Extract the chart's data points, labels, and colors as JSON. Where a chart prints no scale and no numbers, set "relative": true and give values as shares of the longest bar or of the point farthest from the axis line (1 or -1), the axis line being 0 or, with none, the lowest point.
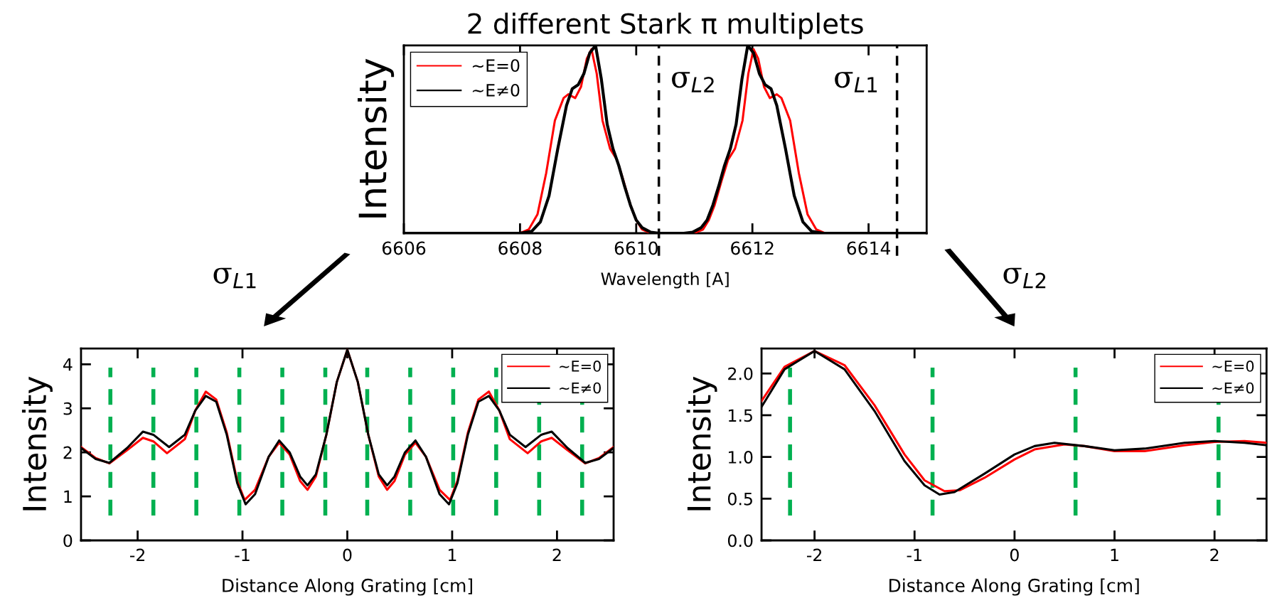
{
  "chart_data": [
    {
      "type": "line",
      "title": "2 different Stark π multiplets",
      "xlabel": "Wavelength [A]",
      "ylabel": "Intensity",
      "relative": true,
      "xlim": [
        6606,
        6615
      ],
      "xticks": [
        6606,
        6608,
        6610,
        6612,
        6614
      ],
      "grid": false,
      "legend": "top left",
      "marker": "none",
      "line_style": "solid",
      "series": [
        {
          "name": "~E=0",
          "color": "#ff0000",
          "x": [
            6606,
            6608.0,
            6608.15,
            6608.3,
            6608.45,
            6608.6,
            6608.75,
            6608.83,
            6608.95,
            6609.05,
            6609.15,
            6609.23,
            6609.32,
            6609.42,
            6609.55,
            6609.67,
            6609.78,
            6609.9,
            6610.0,
            6610.1,
            6610.25,
            6610.99,
            6611.15,
            6611.25,
            6611.35,
            6611.47,
            6611.58,
            6611.7,
            6611.83,
            6611.93,
            6612.02,
            6612.1,
            6612.2,
            6612.3,
            6612.42,
            6612.5,
            6612.65,
            6612.8,
            6612.95,
            6613.1,
            6613.25,
            6615
          ],
          "values": [
            0,
            0,
            0.02,
            0.1,
            0.32,
            0.6,
            0.72,
            0.74,
            0.72,
            0.78,
            0.93,
            0.98,
            0.85,
            0.6,
            0.45,
            0.39,
            0.28,
            0.15,
            0.07,
            0.02,
            0,
            0,
            0.02,
            0.07,
            0.15,
            0.28,
            0.39,
            0.45,
            0.6,
            0.85,
            0.98,
            0.93,
            0.78,
            0.72,
            0.74,
            0.72,
            0.6,
            0.32,
            0.1,
            0.02,
            0,
            0
          ]
        },
        {
          "name": "~E≠0",
          "color": "#000000",
          "x": [
            6606,
            6608.0,
            6608.2,
            6608.35,
            6608.5,
            6608.65,
            6608.8,
            6608.9,
            6609.0,
            6609.1,
            6609.2,
            6609.3,
            6609.4,
            6609.5,
            6609.6,
            6609.7,
            6609.8,
            6609.9,
            6610.0,
            6610.1,
            6610.25,
            6610.4,
            6610.82,
            6610.97,
            6611.12,
            6611.22,
            6611.32,
            6611.42,
            6611.52,
            6611.62,
            6611.72,
            6611.82,
            6611.92,
            6612.02,
            6612.12,
            6612.22,
            6612.32,
            6612.42,
            6612.57,
            6612.72,
            6612.87,
            6613.02,
            6613.22,
            6615
          ],
          "values": [
            0,
            0,
            0.01,
            0.06,
            0.2,
            0.45,
            0.68,
            0.77,
            0.79,
            0.85,
            0.96,
            1.0,
            0.82,
            0.58,
            0.45,
            0.36,
            0.25,
            0.15,
            0.07,
            0.03,
            0.005,
            0,
            0,
            0.005,
            0.03,
            0.07,
            0.15,
            0.25,
            0.36,
            0.45,
            0.58,
            0.82,
            1.0,
            0.96,
            0.85,
            0.79,
            0.77,
            0.68,
            0.45,
            0.2,
            0.06,
            0.01,
            0,
            0
          ]
        }
      ],
      "ref_lines": [
        {
          "axis": "x",
          "value": 6610.39,
          "label": "σ$_{L2}$",
          "color": "#000000",
          "line_style": "dashed"
        },
        {
          "axis": "x",
          "value": 6614.49,
          "label": "σ$_{L1}$",
          "color": "#000000",
          "line_style": "dashed"
        }
      ],
      "annotations": [
        "σ$_{L1}$",
        "σ$_{L2}$"
      ]
    },
    {
      "type": "line",
      "xlabel": "Distance Along Grating [cm]",
      "ylabel": "Intensity",
      "xlim": [
        -2.54,
        2.54
      ],
      "xticks": [
        -2,
        -1,
        0,
        1,
        2
      ],
      "ylim": [
        0,
        4.36
      ],
      "yticks": [
        0,
        1,
        2,
        3,
        4
      ],
      "grid": false,
      "legend": "top right",
      "marker": "none",
      "line_style": "solid",
      "series": [
        {
          "name": "~E=0",
          "color": "#ff0000",
          "x": [
            -2.54,
            -2.4,
            -2.27,
            -2.1,
            -1.95,
            -1.85,
            -1.72,
            -1.55,
            -1.45,
            -1.35,
            -1.25,
            -1.15,
            -1.05,
            -0.98,
            -0.88,
            -0.75,
            -0.65,
            -0.55,
            -0.45,
            -0.38,
            -0.3,
            -0.2,
            -0.1,
            0,
            0.1,
            0.2,
            0.3,
            0.38,
            0.45,
            0.55,
            0.65,
            0.75,
            0.88,
            0.98,
            1.05,
            1.15,
            1.25,
            1.35,
            1.45,
            1.55,
            1.72,
            1.85,
            1.95,
            2.1,
            2.27,
            2.4,
            2.54
          ],
          "values": [
            2.12,
            1.87,
            1.75,
            2.05,
            2.33,
            2.25,
            1.98,
            2.3,
            2.95,
            3.38,
            3.2,
            2.45,
            1.35,
            0.92,
            1.15,
            1.9,
            2.22,
            1.95,
            1.35,
            1.15,
            1.45,
            2.4,
            3.6,
            4.33,
            3.6,
            2.4,
            1.45,
            1.15,
            1.35,
            1.95,
            2.22,
            1.9,
            1.15,
            0.92,
            1.35,
            2.45,
            3.2,
            3.38,
            2.95,
            2.3,
            1.98,
            2.25,
            2.33,
            2.05,
            1.75,
            1.87,
            2.12
          ]
        },
        {
          "name": "~E≠0",
          "color": "#000000",
          "x": [
            -2.54,
            -2.4,
            -2.27,
            -2.1,
            -1.95,
            -1.85,
            -1.7,
            -1.55,
            -1.45,
            -1.35,
            -1.25,
            -1.15,
            -1.05,
            -0.97,
            -0.88,
            -0.75,
            -0.65,
            -0.55,
            -0.45,
            -0.38,
            -0.3,
            -0.2,
            -0.1,
            0,
            0.1,
            0.2,
            0.3,
            0.38,
            0.45,
            0.55,
            0.65,
            0.75,
            0.88,
            0.97,
            1.05,
            1.15,
            1.25,
            1.35,
            1.45,
            1.55,
            1.7,
            1.85,
            1.95,
            2.1,
            2.27,
            2.4,
            2.54
          ],
          "values": [
            2.1,
            1.85,
            1.76,
            2.1,
            2.47,
            2.4,
            2.12,
            2.4,
            2.95,
            3.28,
            3.15,
            2.4,
            1.3,
            0.82,
            1.05,
            1.9,
            2.27,
            2.0,
            1.45,
            1.25,
            1.5,
            2.4,
            3.6,
            4.33,
            3.6,
            2.4,
            1.5,
            1.25,
            1.45,
            2.0,
            2.27,
            1.9,
            1.05,
            0.82,
            1.3,
            2.4,
            3.15,
            3.28,
            2.95,
            2.4,
            2.12,
            2.4,
            2.47,
            2.1,
            1.76,
            1.85,
            2.1
          ]
        }
      ],
      "ref_lines": [
        {
          "axis": "x",
          "value": -2.26,
          "color": "#00b050",
          "line_style": "dashed"
        },
        {
          "axis": "x",
          "value": -1.85,
          "color": "#00b050",
          "line_style": "dashed"
        },
        {
          "axis": "x",
          "value": -1.44,
          "color": "#00b050",
          "line_style": "dashed"
        },
        {
          "axis": "x",
          "value": -1.03,
          "color": "#00b050",
          "line_style": "dashed"
        },
        {
          "axis": "x",
          "value": -0.62,
          "color": "#00b050",
          "line_style": "dashed"
        },
        {
          "axis": "x",
          "value": -0.21,
          "color": "#00b050",
          "line_style": "dashed"
        },
        {
          "axis": "x",
          "value": 0.19,
          "color": "#00b050",
          "line_style": "dashed"
        },
        {
          "axis": "x",
          "value": 0.6,
          "color": "#00b050",
          "line_style": "dashed"
        },
        {
          "axis": "x",
          "value": 1.01,
          "color": "#00b050",
          "line_style": "dashed"
        },
        {
          "axis": "x",
          "value": 1.42,
          "color": "#00b050",
          "line_style": "dashed"
        },
        {
          "axis": "x",
          "value": 1.83,
          "color": "#00b050",
          "line_style": "dashed"
        },
        {
          "axis": "x",
          "value": 2.24,
          "color": "#00b050",
          "line_style": "dashed"
        }
      ]
    },
    {
      "type": "line",
      "xlabel": "Distance Along Grating [cm]",
      "ylabel": "Intensity",
      "xlim": [
        -2.53,
        2.52
      ],
      "xticks": [
        -2,
        -1,
        0,
        1,
        2
      ],
      "ylim": [
        0,
        2.3
      ],
      "yticks": [
        {
          "value": 0,
          "label": "0.0"
        },
        {
          "value": 0.5,
          "label": "0.5"
        },
        {
          "value": 1,
          "label": "1.0"
        },
        {
          "value": 1.5,
          "label": "1.5"
        },
        {
          "value": 2,
          "label": "2.0"
        }
      ],
      "grid": false,
      "legend": "top right",
      "marker": "none",
      "line_style": "solid",
      "series": [
        {
          "name": "~E=0",
          "color": "#ff0000",
          "x": [
            -2.53,
            -2.3,
            -2.0,
            -1.7,
            -1.4,
            -1.1,
            -0.9,
            -0.7,
            -0.55,
            -0.3,
            0,
            0.2,
            0.5,
            0.7,
            1.0,
            1.3,
            1.7,
            2.0,
            2.3,
            2.52
          ],
          "values": [
            1.67,
            2.08,
            2.27,
            2.1,
            1.62,
            1.03,
            0.72,
            0.59,
            0.6,
            0.75,
            0.97,
            1.09,
            1.15,
            1.13,
            1.07,
            1.07,
            1.14,
            1.18,
            1.19,
            1.17
          ]
        },
        {
          "name": "~E≠0",
          "color": "#000000",
          "x": [
            -2.53,
            -2.3,
            -2.0,
            -1.7,
            -1.4,
            -1.1,
            -0.9,
            -0.75,
            -0.6,
            -0.3,
            0,
            0.2,
            0.4,
            0.7,
            1.0,
            1.3,
            1.7,
            2.0,
            2.3,
            2.52
          ],
          "values": [
            1.6,
            2.05,
            2.27,
            2.05,
            1.55,
            0.95,
            0.66,
            0.55,
            0.58,
            0.8,
            1.03,
            1.13,
            1.17,
            1.13,
            1.08,
            1.1,
            1.17,
            1.19,
            1.17,
            1.14
          ]
        }
      ],
      "ref_lines": [
        {
          "axis": "x",
          "value": -2.245,
          "color": "#00b050",
          "line_style": "dashed"
        },
        {
          "axis": "x",
          "value": -0.82,
          "color": "#00b050",
          "line_style": "dashed"
        },
        {
          "axis": "x",
          "value": 0.61,
          "color": "#00b050",
          "line_style": "dashed"
        },
        {
          "axis": "x",
          "value": 2.04,
          "color": "#00b050",
          "line_style": "dashed"
        }
      ]
    }
  ]
}
